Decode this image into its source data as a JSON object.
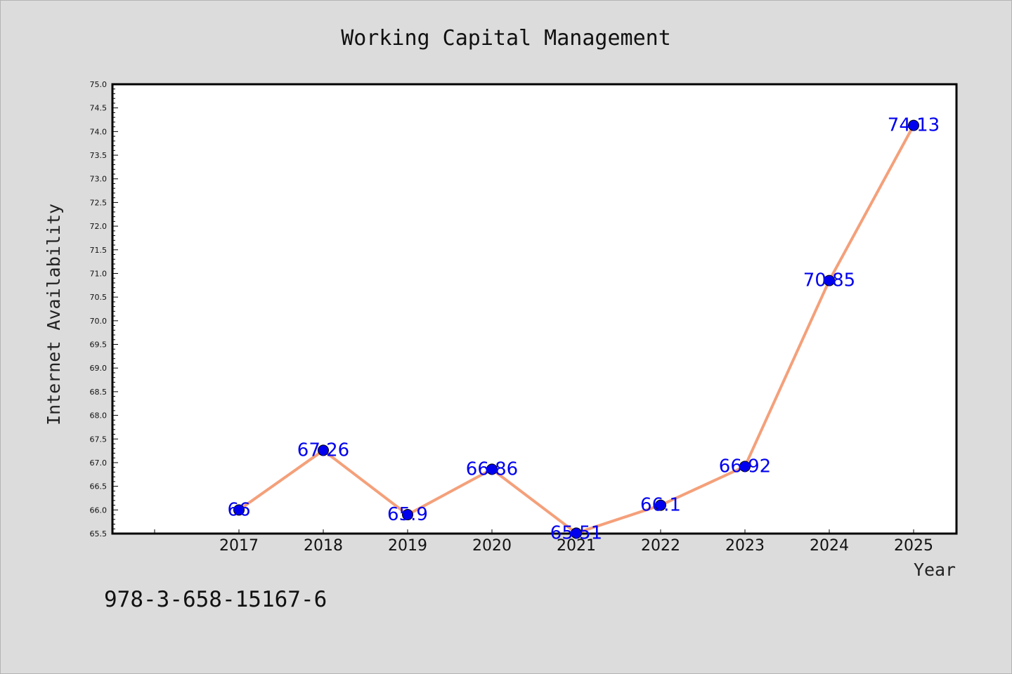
{
  "chart_data": {
    "type": "line",
    "title": "Working Capital Management",
    "xlabel": "Year",
    "ylabel": "Internet Availability",
    "categories": [
      "2017",
      "2018",
      "2019",
      "2020",
      "2021",
      "2022",
      "2023",
      "2024",
      "2025"
    ],
    "series": [
      {
        "values": [
          66,
          67.26,
          65.9,
          66.86,
          65.51,
          66.1,
          66.92,
          70.85,
          74.13
        ],
        "data_labels": [
          "66",
          "67.26",
          "65.9",
          "66.86",
          "65.51",
          "66.1",
          "66.92",
          "70.85",
          "74.13"
        ],
        "line_color": "#f4a07a",
        "marker_color": "#0000ee"
      }
    ],
    "ylim": [
      65.5,
      75.0
    ],
    "yticks": [
      "65.5",
      "66.0",
      "66.5",
      "67.0",
      "67.5",
      "68.0",
      "68.5",
      "69.0",
      "69.5",
      "70.0",
      "70.5",
      "71.0",
      "71.5",
      "72.0",
      "72.5",
      "73.0",
      "73.5",
      "74.0",
      "74.5",
      "75.0"
    ],
    "grid": false
  },
  "footer_text": "978-3-658-15167-6"
}
